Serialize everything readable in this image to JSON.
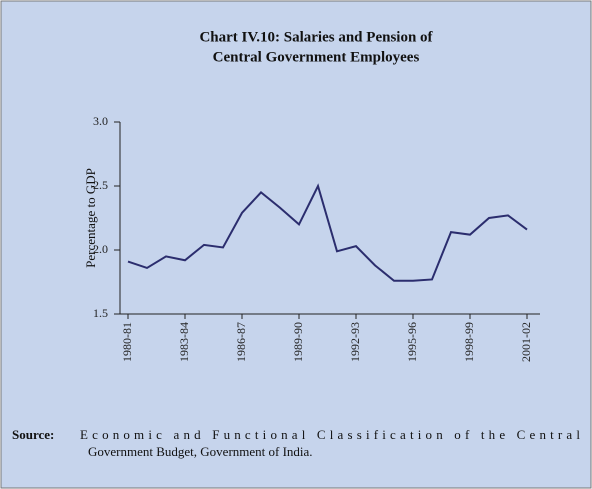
{
  "chart_data": {
    "type": "line",
    "title": [
      "Chart IV.10: Salaries and Pension of",
      "Central Government Employees"
    ],
    "y_label": "Percentage to GDP",
    "categories": [
      "1980-81",
      null,
      null,
      "1983-84",
      null,
      null,
      "1986-87",
      null,
      null,
      "1989-90",
      null,
      null,
      "1992-93",
      null,
      null,
      "1995-96",
      null,
      null,
      "1998-99",
      null,
      null,
      "2001-02"
    ],
    "values": [
      1.91,
      1.86,
      1.95,
      1.92,
      2.04,
      2.02,
      2.29,
      2.45,
      2.33,
      2.2,
      2.5,
      1.99,
      2.03,
      1.88,
      1.76,
      1.76,
      1.77,
      2.14,
      2.12,
      2.25,
      2.27,
      2.16
    ],
    "color": "#2b2d6e",
    "ylim": [
      1.5,
      3.0
    ],
    "yticks": [
      1.5,
      {
        "value": 2,
        "label": "2.0"
      },
      2.5,
      {
        "value": 3,
        "label": "3.0"
      }
    ],
    "source_label": "Source:",
    "source_text": [
      "Economic and Functional Classification of the Central",
      "Government Budget, Government of India."
    ]
  }
}
